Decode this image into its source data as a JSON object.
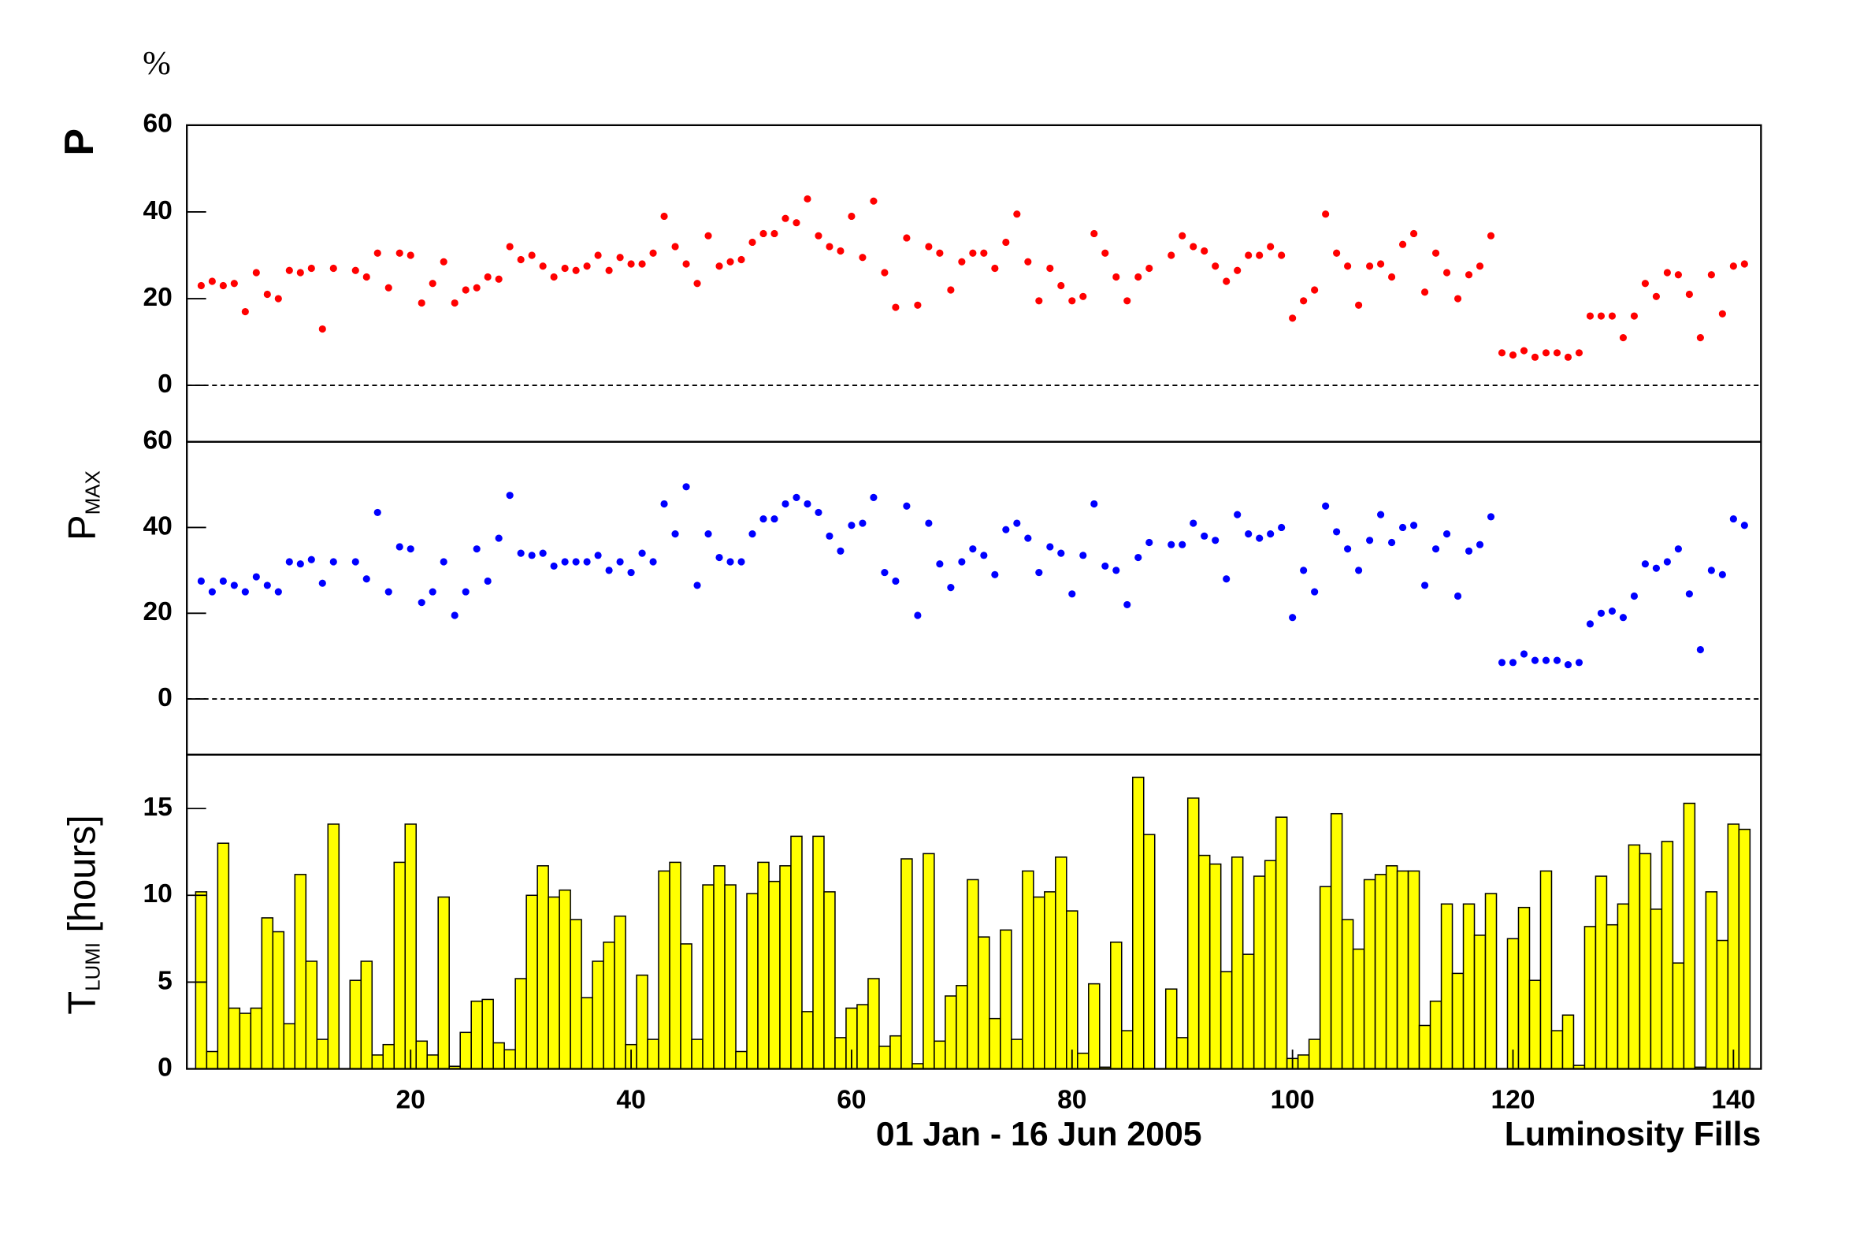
{
  "chart_data": [
    {
      "type": "scatter",
      "ylabel": "P",
      "unit": "%",
      "color": "#ff0000",
      "zero_line": true,
      "xlim": [
        -0.3,
        142.5
      ],
      "ylim": [
        -13,
        60
      ],
      "yticks": [
        0,
        20,
        40,
        60
      ],
      "x": [
        1,
        2,
        3,
        4,
        5,
        6,
        7,
        8,
        9,
        10,
        11,
        12,
        13,
        14,
        15,
        16,
        17,
        18,
        19,
        20,
        21,
        22,
        23,
        24,
        25,
        26,
        27,
        28,
        29,
        30,
        31,
        32,
        33,
        34,
        35,
        36,
        37,
        38,
        39,
        40,
        41,
        42,
        43,
        44,
        45,
        46,
        47,
        48,
        49,
        50,
        51,
        52,
        53,
        54,
        55,
        56,
        57,
        58,
        59,
        60,
        61,
        62,
        63,
        64,
        65,
        66,
        67,
        68,
        69,
        70,
        71,
        72,
        73,
        74,
        75,
        76,
        77,
        78,
        79,
        80,
        81,
        82,
        83,
        84,
        85,
        86,
        87,
        88,
        89,
        90,
        91,
        92,
        93,
        94,
        95,
        96,
        97,
        98,
        99,
        100,
        101,
        102,
        103,
        104,
        105,
        106,
        107,
        108,
        109,
        110,
        111,
        112,
        113,
        114,
        115,
        116,
        117,
        118,
        119,
        120,
        121,
        122,
        123,
        124,
        125,
        126,
        127,
        128,
        129,
        130,
        131,
        132,
        133,
        134,
        135,
        136,
        137,
        138,
        139,
        140,
        141
      ],
      "values": [
        23,
        24,
        23,
        23.5,
        17,
        26,
        21,
        20,
        26.5,
        26,
        27,
        13,
        27,
        null,
        26.5,
        25,
        30.5,
        22.5,
        30.5,
        30,
        19,
        23.5,
        28.5,
        19,
        22,
        22.5,
        25,
        24.5,
        32,
        29,
        30,
        27.5,
        25,
        27,
        26.5,
        27.5,
        30,
        26.5,
        29.5,
        28,
        28,
        30.5,
        39,
        32,
        28,
        23.5,
        34.5,
        27.5,
        28.5,
        29,
        33,
        35,
        35,
        38.5,
        37.5,
        43,
        34.5,
        32,
        31,
        39,
        29.5,
        42.5,
        26,
        18,
        34,
        18.5,
        32,
        30.5,
        22,
        28.5,
        30.5,
        30.5,
        27,
        33,
        39.5,
        28.5,
        19.5,
        27,
        23,
        19.5,
        20.5,
        35,
        30.5,
        25,
        19.5,
        25,
        27,
        null,
        30,
        34.5,
        32,
        31,
        27.5,
        24,
        26.5,
        30,
        30,
        32,
        30,
        15.5,
        19.5,
        22,
        39.5,
        30.5,
        27.5,
        18.5,
        27.5,
        28,
        25,
        32.5,
        35,
        21.5,
        30.5,
        26,
        20,
        25.5,
        27.5,
        34.5,
        7.5,
        7,
        8,
        6.5,
        7.5,
        7.5,
        6.5,
        7.5,
        16,
        16,
        16,
        11,
        16,
        23.5,
        20.5,
        26,
        25.5,
        21,
        11,
        25.5,
        16.5,
        27.5,
        28
      ]
    },
    {
      "type": "scatter",
      "ylabel": {
        "text": "P",
        "sub": "MAX"
      },
      "color": "#0000ff",
      "zero_line": true,
      "xlim": [
        -0.3,
        142.5
      ],
      "ylim": [
        -13,
        60
      ],
      "yticks": [
        0,
        20,
        40,
        60
      ],
      "x": [
        1,
        2,
        3,
        4,
        5,
        6,
        7,
        8,
        9,
        10,
        11,
        12,
        13,
        14,
        15,
        16,
        17,
        18,
        19,
        20,
        21,
        22,
        23,
        24,
        25,
        26,
        27,
        28,
        29,
        30,
        31,
        32,
        33,
        34,
        35,
        36,
        37,
        38,
        39,
        40,
        41,
        42,
        43,
        44,
        45,
        46,
        47,
        48,
        49,
        50,
        51,
        52,
        53,
        54,
        55,
        56,
        57,
        58,
        59,
        60,
        61,
        62,
        63,
        64,
        65,
        66,
        67,
        68,
        69,
        70,
        71,
        72,
        73,
        74,
        75,
        76,
        77,
        78,
        79,
        80,
        81,
        82,
        83,
        84,
        85,
        86,
        87,
        88,
        89,
        90,
        91,
        92,
        93,
        94,
        95,
        96,
        97,
        98,
        99,
        100,
        101,
        102,
        103,
        104,
        105,
        106,
        107,
        108,
        109,
        110,
        111,
        112,
        113,
        114,
        115,
        116,
        117,
        118,
        119,
        120,
        121,
        122,
        123,
        124,
        125,
        126,
        127,
        128,
        129,
        130,
        131,
        132,
        133,
        134,
        135,
        136,
        137,
        138,
        139,
        140,
        141
      ],
      "values": [
        27.5,
        25,
        27.5,
        26.5,
        25,
        28.5,
        26.5,
        25,
        32,
        31.5,
        32.5,
        27,
        32,
        null,
        32,
        28,
        43.5,
        25,
        35.5,
        35,
        22.5,
        25,
        32,
        19.5,
        25,
        35,
        27.5,
        37.5,
        47.5,
        34,
        33.5,
        34,
        31,
        32,
        32,
        32,
        33.5,
        30,
        32,
        29.5,
        34,
        32,
        45.5,
        38.5,
        49.5,
        26.5,
        38.5,
        33,
        32,
        32,
        38.5,
        42,
        42,
        45.5,
        47,
        45.5,
        43.5,
        38,
        34.5,
        40.5,
        41,
        47,
        29.5,
        27.5,
        45,
        19.5,
        41,
        31.5,
        26,
        32,
        35,
        33.5,
        29,
        39.5,
        41,
        37.5,
        29.5,
        35.5,
        34,
        24.5,
        33.5,
        45.5,
        31,
        30,
        22,
        33,
        36.5,
        null,
        36,
        36,
        41,
        38,
        37,
        28,
        43,
        38.5,
        37.5,
        38.5,
        40,
        19,
        30,
        25,
        45,
        39,
        35,
        30,
        37,
        43,
        36.5,
        40,
        40.5,
        26.5,
        35,
        38.5,
        24,
        34.5,
        36,
        42.5,
        8.5,
        8.5,
        10.5,
        9,
        9,
        9,
        8,
        8.5,
        17.5,
        20,
        20.5,
        19,
        24,
        31.5,
        30.5,
        32,
        35,
        24.5,
        11.5,
        30,
        29,
        42,
        40.5
      ]
    },
    {
      "type": "bar",
      "ylabel": {
        "text": "T",
        "sub": "LUMI",
        "suffix": "[hours]"
      },
      "color": "#ffff00",
      "xlabel": "Luminosity Fills",
      "annotation": "01 Jan - 16 Jun 2005",
      "xlim": [
        -0.3,
        142.5
      ],
      "ylim": [
        0,
        18.1
      ],
      "yticks": [
        0,
        5,
        10,
        15
      ],
      "xticks": [
        20,
        40,
        60,
        80,
        100,
        120,
        140
      ],
      "x": [
        1,
        2,
        3,
        4,
        5,
        6,
        7,
        8,
        9,
        10,
        11,
        12,
        13,
        14,
        15,
        16,
        17,
        18,
        19,
        20,
        21,
        22,
        23,
        24,
        25,
        26,
        27,
        28,
        29,
        30,
        31,
        32,
        33,
        34,
        35,
        36,
        37,
        38,
        39,
        40,
        41,
        42,
        43,
        44,
        45,
        46,
        47,
        48,
        49,
        50,
        51,
        52,
        53,
        54,
        55,
        56,
        57,
        58,
        59,
        60,
        61,
        62,
        63,
        64,
        65,
        66,
        67,
        68,
        69,
        70,
        71,
        72,
        73,
        74,
        75,
        76,
        77,
        78,
        79,
        80,
        81,
        82,
        83,
        84,
        85,
        86,
        87,
        88,
        89,
        90,
        91,
        92,
        93,
        94,
        95,
        96,
        97,
        98,
        99,
        100,
        101,
        102,
        103,
        104,
        105,
        106,
        107,
        108,
        109,
        110,
        111,
        112,
        113,
        114,
        115,
        116,
        117,
        118,
        119,
        120,
        121,
        122,
        123,
        124,
        125,
        126,
        127,
        128,
        129,
        130,
        131,
        132,
        133,
        134,
        135,
        136,
        137,
        138,
        139,
        140,
        141
      ],
      "values": [
        10.2,
        1,
        13,
        3.5,
        3.2,
        3.5,
        8.7,
        7.9,
        2.6,
        11.2,
        6.2,
        1.7,
        14.1,
        0,
        5.1,
        6.2,
        0.8,
        1.4,
        11.9,
        14.1,
        1.6,
        0.8,
        9.9,
        0.15,
        2.1,
        3.9,
        4,
        1.5,
        1.1,
        5.2,
        10,
        11.7,
        9.9,
        10.3,
        8.6,
        4.1,
        6.2,
        7.3,
        8.8,
        1.4,
        5.4,
        1.7,
        11.4,
        11.9,
        7.2,
        1.7,
        10.6,
        11.7,
        10.6,
        1,
        10.1,
        11.9,
        10.8,
        11.7,
        13.4,
        3.3,
        13.4,
        10.2,
        1.8,
        3.5,
        3.7,
        5.2,
        1.3,
        1.9,
        12.1,
        0.3,
        12.4,
        1.6,
        4.2,
        4.8,
        10.9,
        7.6,
        2.9,
        8,
        1.7,
        11.4,
        9.9,
        10.2,
        12.2,
        9.1,
        0.9,
        4.9,
        0.1,
        7.3,
        2.2,
        16.8,
        13.5,
        0,
        4.6,
        1.8,
        15.6,
        12.3,
        11.8,
        5.6,
        12.2,
        6.6,
        11.1,
        12,
        14.5,
        0.6,
        0.8,
        1.7,
        10.5,
        14.7,
        8.6,
        6.9,
        10.9,
        11.2,
        11.7,
        11.4,
        11.4,
        2.5,
        3.9,
        9.5,
        5.5,
        9.5,
        7.7,
        10.1,
        0,
        7.5,
        9.3,
        5.1,
        11.4,
        2.2,
        3.1,
        0.2,
        8.2,
        11.1,
        8.3,
        9.5,
        12.9,
        12.4,
        9.2,
        13.1,
        6.1,
        15.3,
        0.1,
        10.2,
        7.4,
        14.1,
        13.8
      ]
    }
  ]
}
